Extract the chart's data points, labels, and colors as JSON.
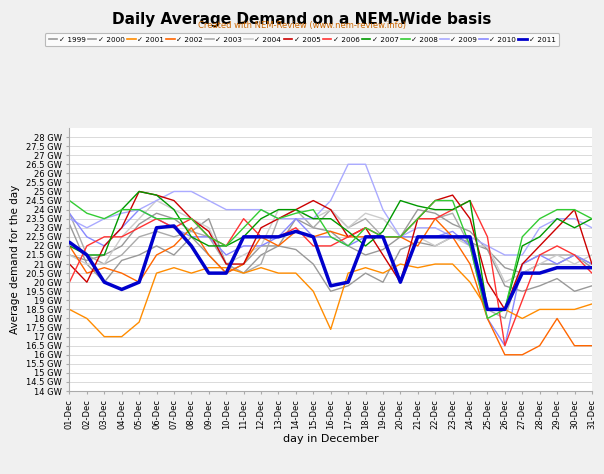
{
  "title": "Daily Average Demand on a NEM-Wide basis",
  "subtitle": "Created with NEM-Review (www.nem-review.info)",
  "xlabel": "day in December",
  "ylabel": "Average demand for the day",
  "ylim": [
    14000,
    28500
  ],
  "yticks": [
    14000,
    14500,
    15000,
    15500,
    16000,
    16500,
    17000,
    17500,
    18000,
    18500,
    19000,
    19500,
    20000,
    20500,
    21000,
    21500,
    22000,
    22500,
    23000,
    23500,
    24000,
    24500,
    25000,
    25500,
    26000,
    26500,
    27000,
    27500,
    28000
  ],
  "days": [
    1,
    2,
    3,
    4,
    5,
    6,
    7,
    8,
    9,
    10,
    11,
    12,
    13,
    14,
    15,
    16,
    17,
    18,
    19,
    20,
    21,
    22,
    23,
    24,
    25,
    26,
    27,
    28,
    29,
    30,
    31
  ],
  "series": {
    "1999": {
      "color": "#999999",
      "linewidth": 1.0,
      "values": [
        21500,
        21200,
        21500,
        22000,
        23200,
        23800,
        23500,
        22800,
        23500,
        21000,
        20500,
        21500,
        22000,
        23500,
        23000,
        22800,
        22000,
        21500,
        21800,
        22500,
        24000,
        23800,
        23200,
        22800,
        21800,
        20800,
        20500,
        21000,
        21000,
        21500,
        20800
      ]
    },
    "2000": {
      "color": "#999999",
      "linewidth": 1.0,
      "values": [
        23200,
        21000,
        20000,
        21200,
        21500,
        22000,
        21500,
        22500,
        21500,
        20500,
        21000,
        22000,
        22000,
        21800,
        21000,
        19500,
        19800,
        20500,
        20000,
        21800,
        22200,
        22000,
        22500,
        22200,
        21800,
        19800,
        19500,
        19800,
        20200,
        19500,
        19800
      ]
    },
    "2001": {
      "color": "#FF8C00",
      "linewidth": 1.0,
      "values": [
        18500,
        18000,
        17000,
        17000,
        17800,
        20500,
        20800,
        20500,
        20800,
        20800,
        20500,
        20800,
        20500,
        20500,
        19500,
        17400,
        20500,
        20800,
        20500,
        21000,
        20800,
        21000,
        21000,
        20000,
        18500,
        18500,
        18000,
        18500,
        18500,
        18500,
        18800
      ]
    },
    "2002": {
      "color": "#FF6600",
      "linewidth": 1.0,
      "values": [
        22000,
        20500,
        20800,
        20500,
        20000,
        21500,
        22000,
        23000,
        21500,
        20500,
        21000,
        22500,
        22000,
        22800,
        22500,
        22800,
        22500,
        22500,
        22500,
        22500,
        22000,
        23500,
        22500,
        21000,
        18000,
        16000,
        16000,
        16500,
        18000,
        16500,
        16500
      ]
    },
    "2003": {
      "color": "#AAAAAA",
      "linewidth": 1.0,
      "values": [
        23800,
        21500,
        21000,
        21500,
        22500,
        22800,
        22500,
        22800,
        22500,
        21000,
        20500,
        21000,
        23500,
        24000,
        23000,
        24000,
        23000,
        23500,
        22500,
        22500,
        23500,
        23500,
        23800,
        22000,
        18500,
        18000,
        21000,
        21500,
        21500,
        21500,
        21000
      ]
    },
    "2004": {
      "color": "#CCCCCC",
      "linewidth": 1.0,
      "values": [
        21500,
        21000,
        21000,
        22500,
        23500,
        24500,
        24000,
        23500,
        23000,
        21000,
        21500,
        22000,
        24000,
        24000,
        23500,
        24000,
        23000,
        23800,
        23500,
        22500,
        22500,
        22000,
        22500,
        22000,
        22000,
        20000,
        20500,
        21000,
        21500,
        21000,
        21500
      ]
    },
    "2005": {
      "color": "#CC0000",
      "linewidth": 1.0,
      "values": [
        21000,
        20000,
        22000,
        23000,
        25000,
        24800,
        24500,
        23500,
        22800,
        21000,
        21000,
        23000,
        23500,
        24000,
        24500,
        24000,
        22500,
        23000,
        21500,
        20000,
        23500,
        24500,
        24800,
        23500,
        20000,
        18500,
        21000,
        22000,
        23000,
        24000,
        21000
      ]
    },
    "2006": {
      "color": "#FF3333",
      "linewidth": 1.0,
      "values": [
        20000,
        22000,
        22500,
        22500,
        23000,
        23500,
        23000,
        23500,
        22500,
        22000,
        23500,
        22500,
        22500,
        23000,
        22000,
        22000,
        22500,
        23000,
        22500,
        22500,
        23500,
        23500,
        24000,
        24500,
        22500,
        16500,
        19000,
        21500,
        22000,
        21500,
        20500
      ]
    },
    "2007": {
      "color": "#009900",
      "linewidth": 1.0,
      "values": [
        22000,
        21500,
        21500,
        24000,
        25000,
        24800,
        24000,
        22500,
        22000,
        22000,
        22500,
        23500,
        24000,
        24000,
        23500,
        23500,
        22800,
        22000,
        22800,
        24500,
        24200,
        24000,
        24000,
        24500,
        18500,
        18500,
        22000,
        22500,
        23500,
        23000,
        23500
      ]
    },
    "2008": {
      "color": "#33CC33",
      "linewidth": 1.0,
      "values": [
        24500,
        23800,
        23500,
        24000,
        24000,
        23500,
        23500,
        23500,
        22500,
        22000,
        23000,
        24000,
        23500,
        23800,
        24000,
        22500,
        22000,
        23000,
        22500,
        22500,
        23500,
        24500,
        24500,
        22000,
        18000,
        18500,
        22500,
        23500,
        24000,
        24000,
        23500
      ]
    },
    "2009": {
      "color": "#AAAAFF",
      "linewidth": 1.0,
      "values": [
        23500,
        23000,
        23500,
        23800,
        24000,
        24500,
        25000,
        25000,
        24500,
        24000,
        24000,
        24000,
        23500,
        23500,
        23500,
        24500,
        26500,
        26500,
        24000,
        22500,
        23000,
        23000,
        22500,
        22500,
        22000,
        21500,
        21500,
        23000,
        23500,
        23500,
        23000
      ]
    },
    "2010": {
      "color": "#8888FF",
      "linewidth": 1.0,
      "values": [
        23800,
        22500,
        22000,
        23000,
        24000,
        23500,
        23000,
        22500,
        22500,
        21500,
        22000,
        22000,
        22500,
        23500,
        22500,
        22500,
        22000,
        22500,
        22500,
        22500,
        22500,
        22500,
        22800,
        22000,
        18000,
        16500,
        21000,
        21500,
        21000,
        21500,
        21000
      ]
    },
    "2011": {
      "color": "#0000CC",
      "linewidth": 2.5,
      "values": [
        22200,
        21500,
        20000,
        19600,
        20000,
        23000,
        23100,
        22000,
        20500,
        20500,
        22500,
        22500,
        22500,
        22800,
        22500,
        19800,
        20000,
        22500,
        22500,
        20000,
        22500,
        22500,
        22500,
        22500,
        18500,
        18500,
        20500,
        20500,
        20800,
        20800,
        20800
      ]
    }
  },
  "background_color": "#F0F0F0",
  "plot_background": "#FFFFFF",
  "grid_color": "#CCCCCC",
  "legend_years": [
    "1999",
    "2000",
    "2001",
    "2002",
    "2003",
    "2004",
    "2005",
    "2006",
    "2007",
    "2008",
    "2009",
    "2010",
    "2011"
  ]
}
